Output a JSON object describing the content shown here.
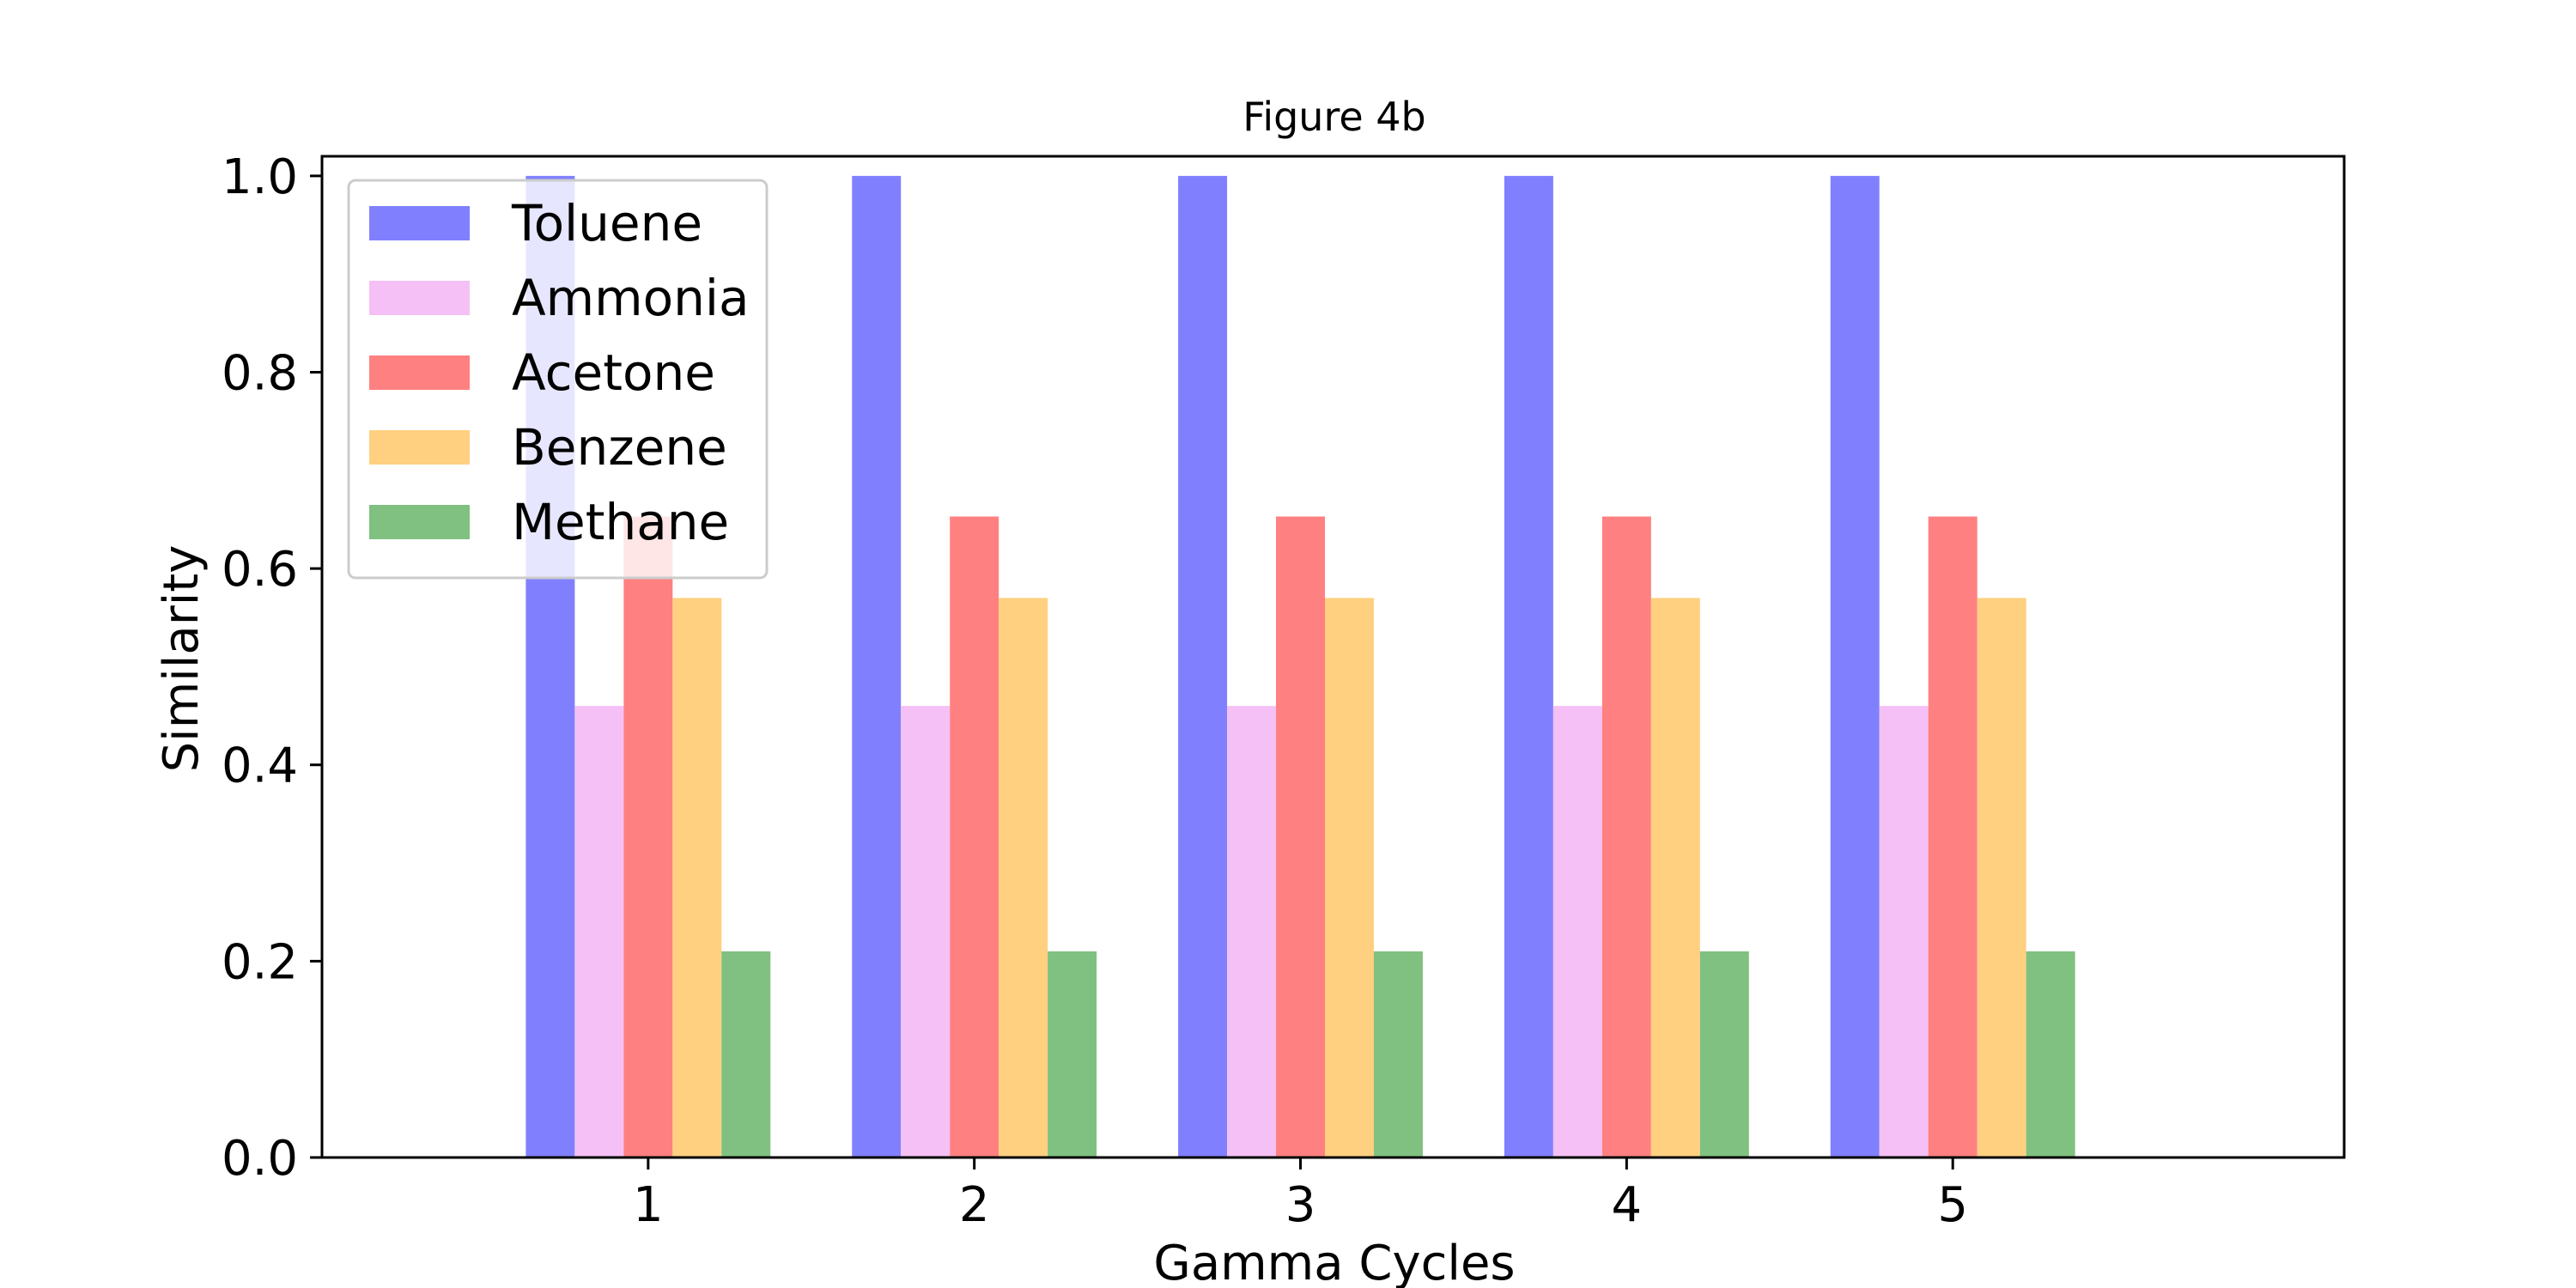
{
  "chart_data": {
    "type": "bar",
    "title": "Figure 4b",
    "xlabel": "Gamma Cycles",
    "ylabel": "Similarity",
    "categories": [
      "1",
      "2",
      "3",
      "4",
      "5"
    ],
    "xlim": [
      0,
      6.2
    ],
    "ylim": [
      0,
      1.02
    ],
    "yticks": [
      "0.0",
      "0.2",
      "0.4",
      "0.6",
      "0.8",
      "1.0"
    ],
    "series": [
      {
        "name": "Toluene",
        "color": "#8080ff",
        "values": [
          1.0,
          1.0,
          1.0,
          1.0,
          1.0
        ]
      },
      {
        "name": "Ammonia",
        "color": "#f5c0f5",
        "values": [
          0.46,
          0.46,
          0.46,
          0.46,
          0.46
        ]
      },
      {
        "name": "Acetone",
        "color": "#ff8080",
        "values": [
          0.653,
          0.653,
          0.653,
          0.653,
          0.653
        ]
      },
      {
        "name": "Benzene",
        "color": "#ffd080",
        "values": [
          0.57,
          0.57,
          0.57,
          0.57,
          0.57
        ]
      },
      {
        "name": "Methane",
        "color": "#80c080",
        "values": [
          0.21,
          0.21,
          0.21,
          0.21,
          0.21
        ]
      }
    ],
    "legend": "upper-left",
    "grid": false
  }
}
